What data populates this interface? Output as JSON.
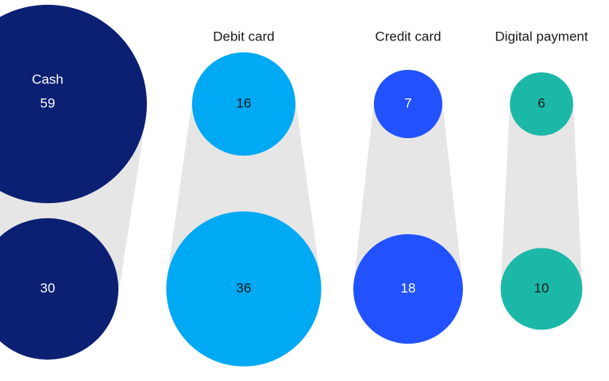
{
  "chart_data": {
    "type": "bubble-pairs",
    "categories": [
      "Cash",
      "Debit card",
      "Credit card",
      "Digital payment"
    ],
    "colors": [
      "#0b1f73",
      "#00a9f4",
      "#2251ff",
      "#1bb8a8"
    ],
    "label_colors": [
      "#ffffff",
      "#1a1a1a",
      "#ffffff",
      "#1a1a1a"
    ],
    "connector_color": "#e6e6e6",
    "series": [
      {
        "values": [
          59,
          16,
          7,
          6
        ]
      },
      {
        "values": [
          30,
          36,
          18,
          10
        ]
      }
    ]
  }
}
